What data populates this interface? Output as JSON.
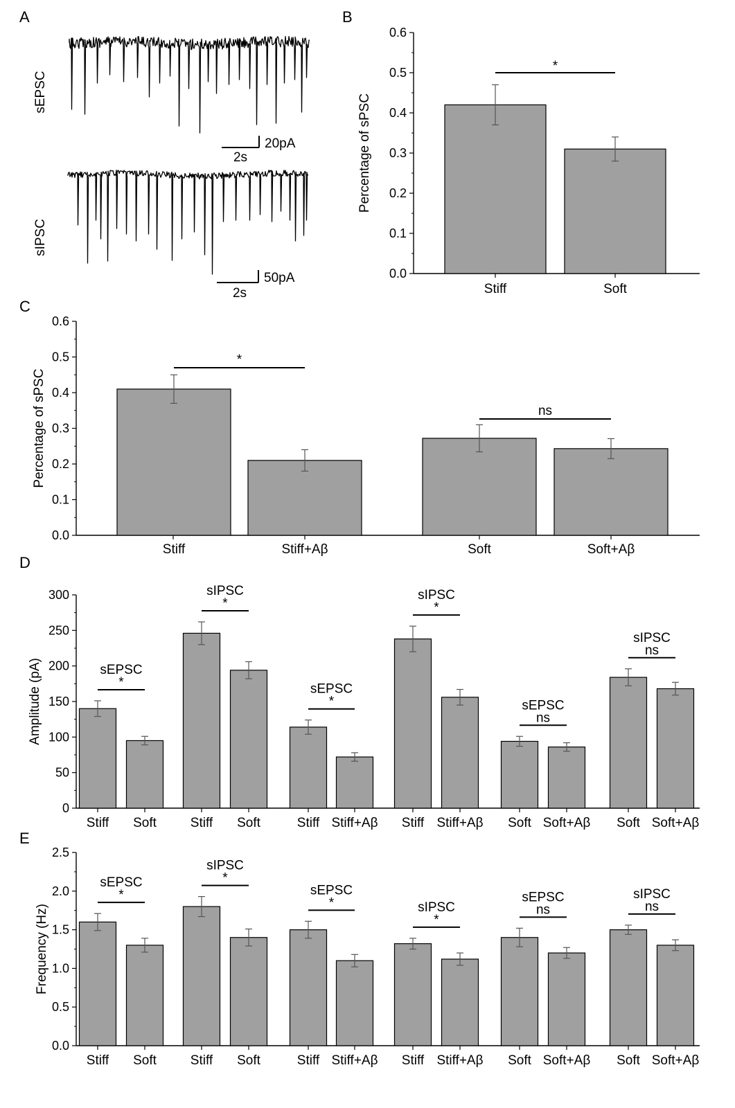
{
  "panels": {
    "A": {
      "label": "A",
      "traces": [
        {
          "name": "sEPSC",
          "scale_amp": "20pA",
          "scale_time": "2s"
        },
        {
          "name": "sIPSC",
          "scale_amp": "50pA",
          "scale_time": "2s"
        }
      ]
    }
  },
  "chart_data": [
    {
      "panel": "B",
      "type": "bar",
      "ylabel": "Percentage of sPSC",
      "ylim": [
        0,
        0.6
      ],
      "yticks": [
        0.0,
        0.1,
        0.2,
        0.3,
        0.4,
        0.5,
        0.6
      ],
      "ytick_labels": [
        "0.0",
        "0.1",
        "0.2",
        "0.3",
        "0.4",
        "0.5",
        "0.6"
      ],
      "bar_color": "#a0a0a0",
      "categories": [
        "Stiff",
        "Soft"
      ],
      "values": [
        0.42,
        0.31
      ],
      "errors": [
        0.05,
        0.03
      ],
      "significance": [
        {
          "from": 0,
          "to": 1,
          "label": "*"
        }
      ]
    },
    {
      "panel": "C",
      "type": "bar",
      "ylabel": "Percentage of sPSC",
      "ylim": [
        0,
        0.6
      ],
      "yticks": [
        0.0,
        0.1,
        0.2,
        0.3,
        0.4,
        0.5,
        0.6
      ],
      "ytick_labels": [
        "0.0",
        "0.1",
        "0.2",
        "0.3",
        "0.4",
        "0.5",
        "0.6"
      ],
      "bar_color": "#a0a0a0",
      "categories": [
        "Stiff",
        "Stiff+Aβ",
        "Soft",
        "Soft+Aβ"
      ],
      "values": [
        0.41,
        0.21,
        0.272,
        0.243
      ],
      "errors": [
        0.04,
        0.03,
        0.038,
        0.028
      ],
      "significance": [
        {
          "from": 0,
          "to": 1,
          "label": "*"
        },
        {
          "from": 2,
          "to": 3,
          "label": "ns"
        }
      ]
    },
    {
      "panel": "D",
      "type": "bar",
      "ylabel": "Amplitude (pA)",
      "ylim": [
        0,
        300
      ],
      "yticks": [
        0,
        50,
        100,
        150,
        200,
        250,
        300
      ],
      "ytick_labels": [
        "0",
        "50",
        "100",
        "150",
        "200",
        "250",
        "300"
      ],
      "bar_color": "#a0a0a0",
      "groups": [
        {
          "title": "sEPSC",
          "sig": "*",
          "categories": [
            "Stiff",
            "Soft"
          ],
          "values": [
            140,
            95
          ],
          "errors": [
            11,
            6
          ]
        },
        {
          "title": "sIPSC",
          "sig": "*",
          "categories": [
            "Stiff",
            "Soft"
          ],
          "values": [
            246,
            194
          ],
          "errors": [
            16,
            12
          ]
        },
        {
          "title": "sEPSC",
          "sig": "*",
          "categories": [
            "Stiff",
            "Stiff+Aβ"
          ],
          "values": [
            114,
            72
          ],
          "errors": [
            10,
            6
          ]
        },
        {
          "title": "sIPSC",
          "sig": "*",
          "categories": [
            "Stiff",
            "Stiff+Aβ"
          ],
          "values": [
            238,
            156
          ],
          "errors": [
            18,
            11
          ]
        },
        {
          "title": "sEPSC",
          "sig": "ns",
          "categories": [
            "Soft",
            "Soft+Aβ"
          ],
          "values": [
            94,
            86
          ],
          "errors": [
            7,
            6
          ]
        },
        {
          "title": "sIPSC",
          "sig": "ns",
          "categories": [
            "Soft",
            "Soft+Aβ"
          ],
          "values": [
            184,
            168
          ],
          "errors": [
            12,
            9
          ]
        }
      ]
    },
    {
      "panel": "E",
      "type": "bar",
      "ylabel": "Frequency (Hz)",
      "ylim": [
        0,
        2.5
      ],
      "yticks": [
        0,
        0.5,
        1.0,
        1.5,
        2.0,
        2.5
      ],
      "ytick_labels": [
        "0.0",
        "0.5",
        "1.0",
        "1.5",
        "2.0",
        "2.5"
      ],
      "bar_color": "#a0a0a0",
      "groups": [
        {
          "title": "sEPSC",
          "sig": "*",
          "categories": [
            "Stiff",
            "Soft"
          ],
          "values": [
            1.6,
            1.3
          ],
          "errors": [
            0.11,
            0.09
          ]
        },
        {
          "title": "sIPSC",
          "sig": "*",
          "categories": [
            "Stiff",
            "Soft"
          ],
          "values": [
            1.8,
            1.4
          ],
          "errors": [
            0.13,
            0.11
          ]
        },
        {
          "title": "sEPSC",
          "sig": "*",
          "categories": [
            "Stiff",
            "Stiff+Aβ"
          ],
          "values": [
            1.5,
            1.1
          ],
          "errors": [
            0.11,
            0.08
          ]
        },
        {
          "title": "sIPSC",
          "sig": "*",
          "categories": [
            "Stiff",
            "Stiff+Aβ"
          ],
          "values": [
            1.32,
            1.12
          ],
          "errors": [
            0.07,
            0.08
          ]
        },
        {
          "title": "sEPSC",
          "sig": "ns",
          "categories": [
            "Soft",
            "Soft+Aβ"
          ],
          "values": [
            1.4,
            1.2
          ],
          "errors": [
            0.12,
            0.07
          ]
        },
        {
          "title": "sIPSC",
          "sig": "ns",
          "categories": [
            "Soft",
            "Soft+Aβ"
          ],
          "values": [
            1.5,
            1.3
          ],
          "errors": [
            0.06,
            0.07
          ]
        }
      ]
    }
  ]
}
